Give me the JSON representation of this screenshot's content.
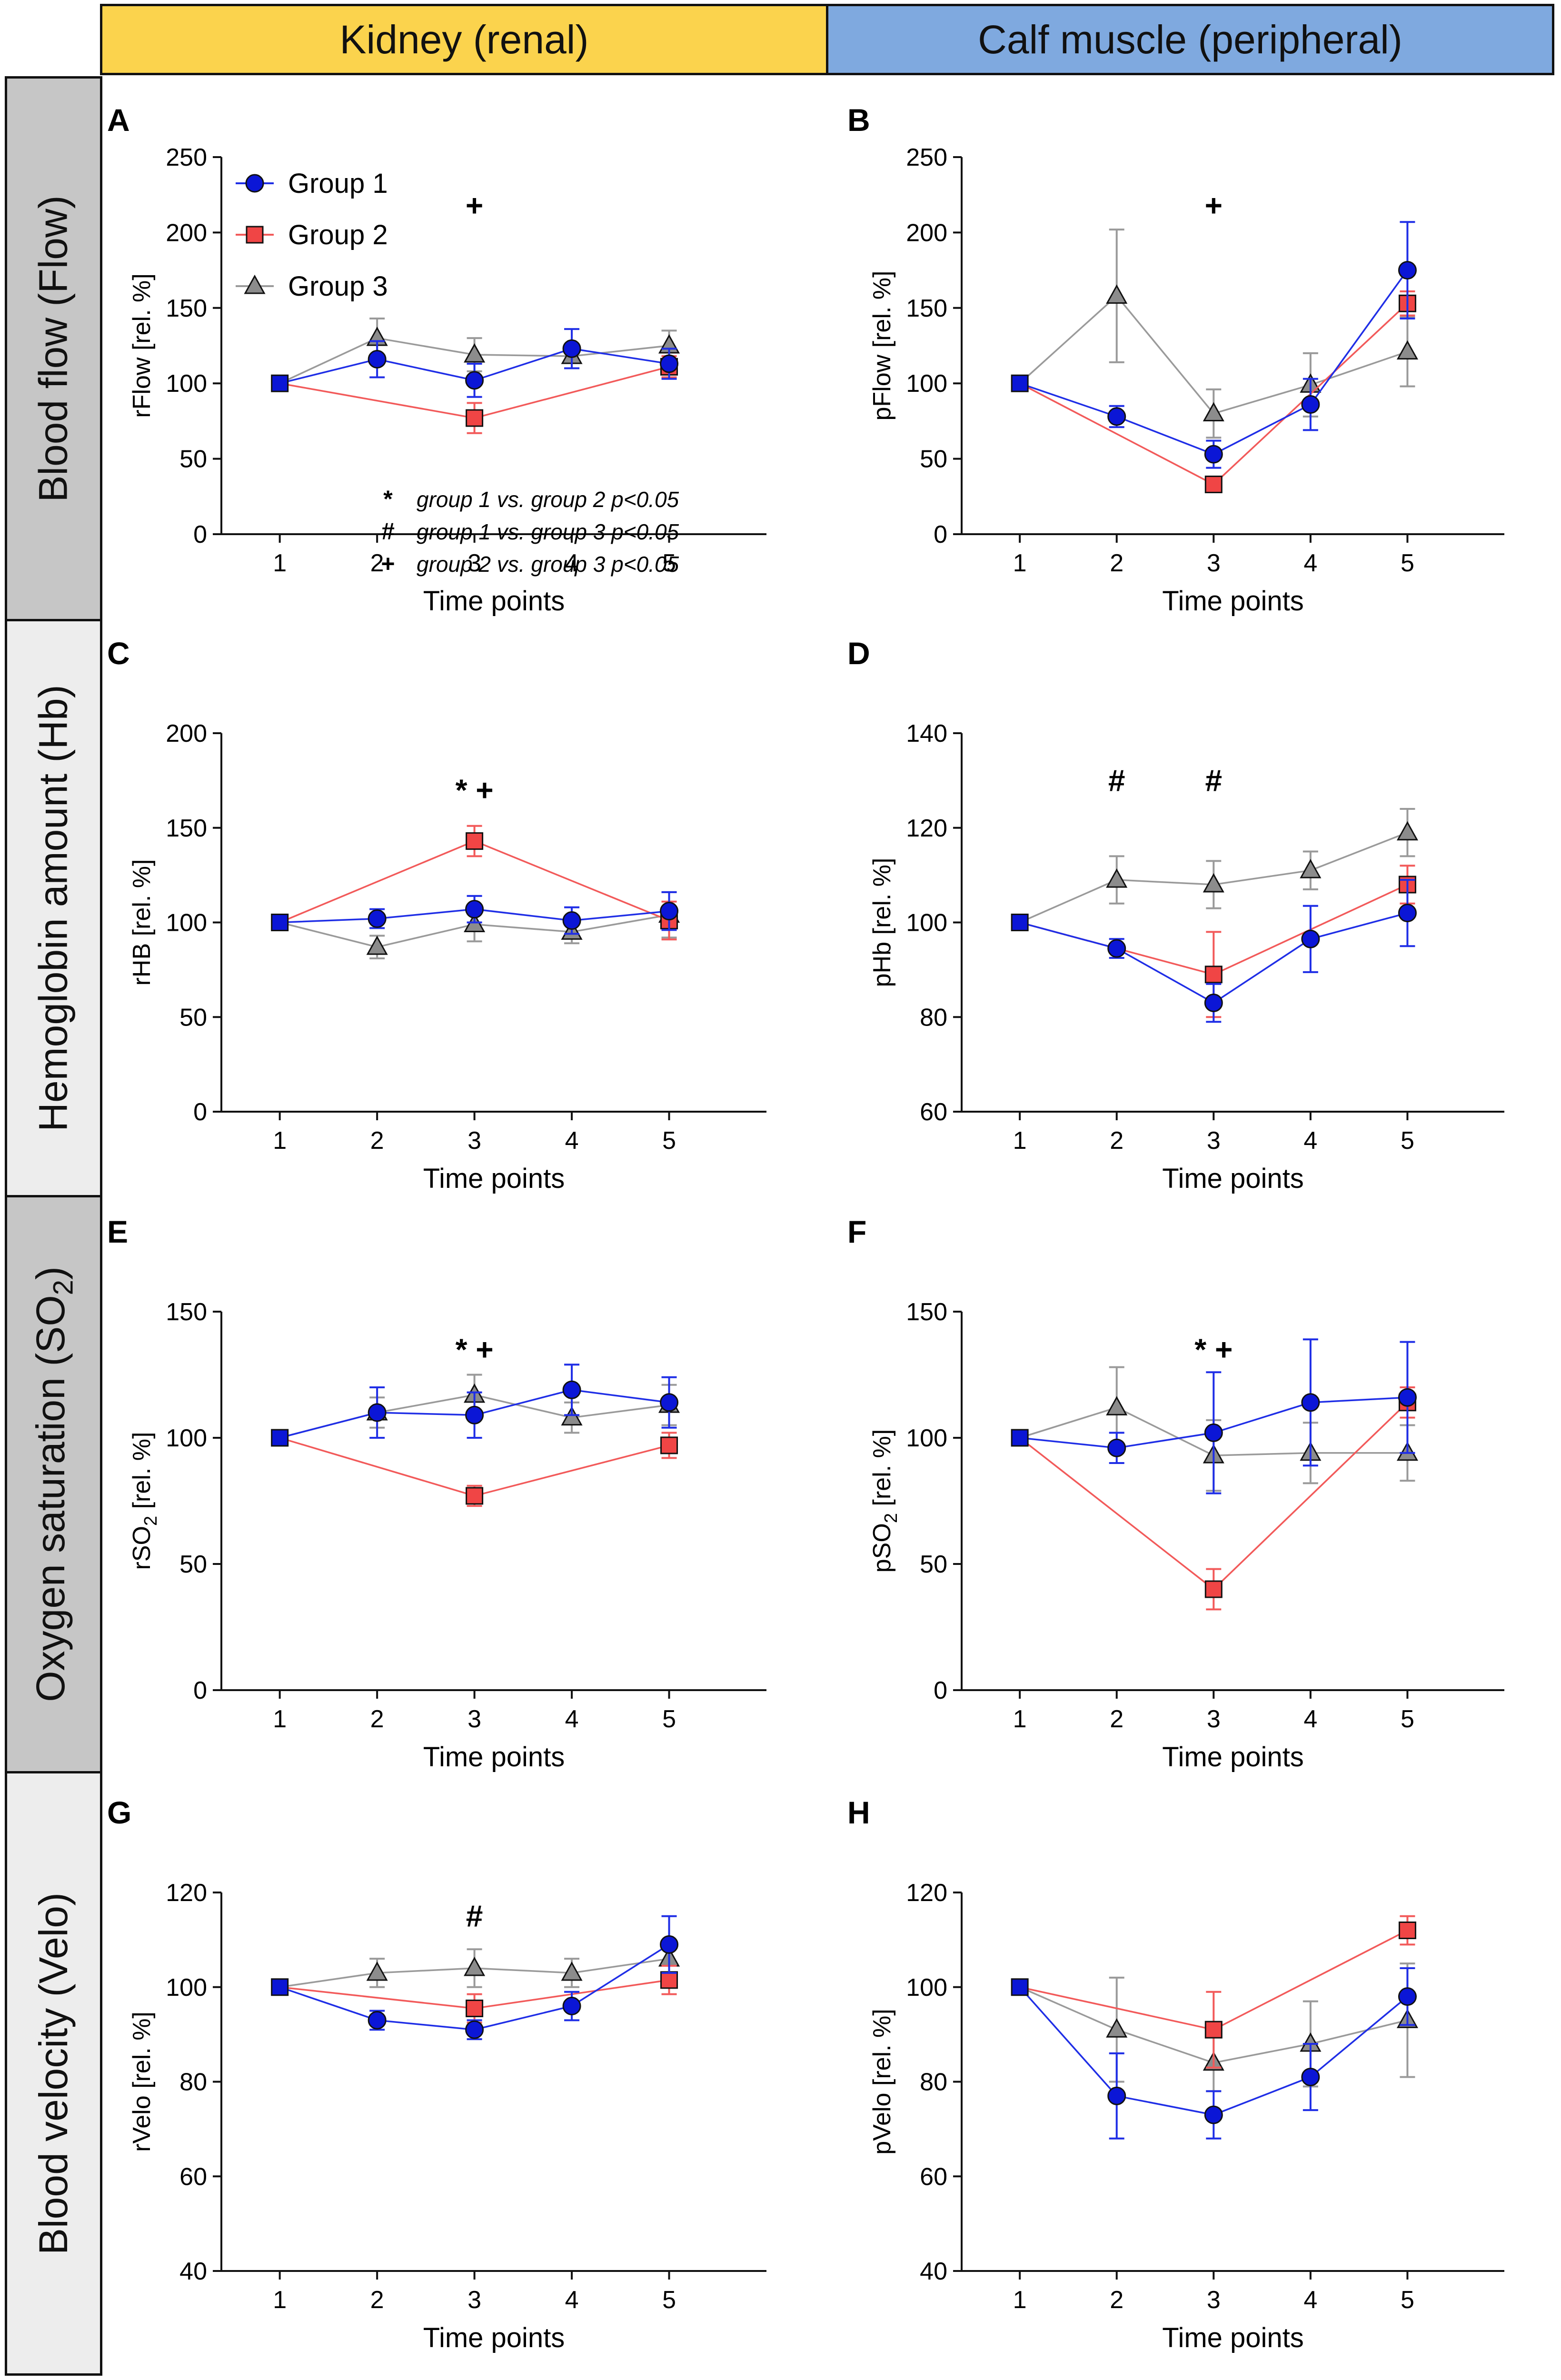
{
  "columns": [
    "Kidney (renal)",
    "Calf muscle (peripheral)"
  ],
  "rows": [
    {
      "label": "Blood flow (Flow)",
      "shade": "grey"
    },
    {
      "label": "Hemoglobin amount (Hb)",
      "shade": "light"
    },
    {
      "label": "Oxygen saturation (SO2)",
      "shade": "grey"
    },
    {
      "label": "Blood velocity (Velo)",
      "shade": "light"
    }
  ],
  "legend": [
    "Group 1",
    "Group 2",
    "Group 3"
  ],
  "stats_note": [
    {
      "symbol": "*",
      "text": "group 1 vs. group 2 p<0.05"
    },
    {
      "symbol": "#",
      "text": "group 1 vs. group 3 p<0.05"
    },
    {
      "symbol": "+",
      "text": "group 2 vs. group 3 p<0.05"
    }
  ],
  "colors": {
    "group1": "#0b16d6",
    "group2": "#f04545",
    "group3": "#8c8c8c",
    "line1": "#1f2ee6",
    "line2": "#f25a5a",
    "line3": "#9a9a9a"
  },
  "chart_data": [
    {
      "panel": "A",
      "type": "line",
      "ylabel": "rFlow [rel. %]",
      "xlabel": "Time points",
      "x": [
        1,
        2,
        3,
        4,
        5
      ],
      "ylim": [
        0,
        250
      ],
      "yticks": [
        0,
        50,
        100,
        150,
        200,
        250
      ],
      "series": [
        {
          "name": "Group 1",
          "values": [
            100,
            116,
            102,
            123,
            113
          ],
          "errors": [
            0,
            12,
            11,
            13,
            10
          ]
        },
        {
          "name": "Group 2",
          "values": [
            100,
            null,
            77,
            null,
            111
          ],
          "errors": [
            0,
            0,
            10,
            0,
            7
          ]
        },
        {
          "name": "Group 3",
          "values": [
            100,
            130,
            119,
            118,
            125
          ],
          "errors": [
            0,
            13,
            11,
            8,
            10
          ]
        }
      ],
      "annotations": [
        {
          "x": 3,
          "y": 218,
          "text": "+"
        }
      ]
    },
    {
      "panel": "B",
      "type": "line",
      "ylabel": "pFlow [rel. %]",
      "xlabel": "Time points",
      "x": [
        1,
        2,
        3,
        4,
        5
      ],
      "ylim": [
        0,
        250
      ],
      "yticks": [
        0,
        50,
        100,
        150,
        200,
        250
      ],
      "series": [
        {
          "name": "Group 1",
          "values": [
            100,
            78,
            53,
            86,
            175
          ],
          "errors": [
            0,
            7,
            9,
            17,
            32
          ]
        },
        {
          "name": "Group 2",
          "values": [
            100,
            null,
            33,
            null,
            153
          ],
          "errors": [
            0,
            0,
            3,
            0,
            8
          ]
        },
        {
          "name": "Group 3",
          "values": [
            100,
            158,
            80,
            99,
            121
          ],
          "errors": [
            0,
            44,
            16,
            21,
            23
          ]
        }
      ],
      "annotations": [
        {
          "x": 3,
          "y": 218,
          "text": "+"
        }
      ]
    },
    {
      "panel": "C",
      "type": "line",
      "ylabel": "rHB [rel. %]",
      "xlabel": "Time points",
      "x": [
        1,
        2,
        3,
        4,
        5
      ],
      "ylim": [
        0,
        200
      ],
      "yticks": [
        0,
        50,
        100,
        150,
        200
      ],
      "series": [
        {
          "name": "Group 1",
          "values": [
            100,
            102,
            107,
            101,
            106
          ],
          "errors": [
            0,
            5,
            7,
            7,
            10
          ]
        },
        {
          "name": "Group 2",
          "values": [
            100,
            null,
            143,
            null,
            101
          ],
          "errors": [
            0,
            0,
            8,
            0,
            10
          ]
        },
        {
          "name": "Group 3",
          "values": [
            100,
            87,
            99,
            95,
            104
          ],
          "errors": [
            0,
            6,
            9,
            6,
            12
          ]
        }
      ],
      "annotations": [
        {
          "x": 3,
          "y": 170,
          "text": "* +"
        }
      ]
    },
    {
      "panel": "D",
      "type": "line",
      "ylabel": "pHb [rel. %]",
      "xlabel": "Time points",
      "x": [
        1,
        2,
        3,
        4,
        5
      ],
      "ylim": [
        60,
        140
      ],
      "yticks": [
        60,
        80,
        100,
        120,
        140
      ],
      "series": [
        {
          "name": "Group 1",
          "values": [
            100,
            94.5,
            83,
            96.5,
            102
          ],
          "errors": [
            0,
            2,
            4,
            7,
            7
          ]
        },
        {
          "name": "Group 2",
          "values": [
            100,
            null,
            89,
            null,
            108
          ],
          "errors": [
            0,
            0,
            9,
            0,
            4
          ]
        },
        {
          "name": "Group 3",
          "values": [
            100,
            109,
            108,
            111,
            119
          ],
          "errors": [
            0,
            5,
            5,
            4,
            5
          ]
        }
      ],
      "annotations": [
        {
          "x": 2,
          "y": 130,
          "text": "#"
        },
        {
          "x": 3,
          "y": 130,
          "text": "#"
        }
      ]
    },
    {
      "panel": "E",
      "type": "line",
      "ylabel": "rSO2 [rel. %]",
      "xlabel": "Time points",
      "x": [
        1,
        2,
        3,
        4,
        5
      ],
      "ylim": [
        0,
        150
      ],
      "yticks": [
        0,
        50,
        100,
        150
      ],
      "series": [
        {
          "name": "Group 1",
          "values": [
            100,
            110,
            109,
            119,
            114
          ],
          "errors": [
            0,
            10,
            9,
            10,
            10
          ]
        },
        {
          "name": "Group 2",
          "values": [
            100,
            null,
            77,
            null,
            97
          ],
          "errors": [
            0,
            0,
            4,
            0,
            5
          ]
        },
        {
          "name": "Group 3",
          "values": [
            100,
            110,
            117,
            108,
            113
          ],
          "errors": [
            0,
            6,
            8,
            6,
            8
          ]
        }
      ],
      "annotations": [
        {
          "x": 3,
          "y": 135,
          "text": "* +"
        }
      ]
    },
    {
      "panel": "F",
      "type": "line",
      "ylabel": "pSO2 [rel. %]",
      "xlabel": "Time points",
      "x": [
        1,
        2,
        3,
        4,
        5
      ],
      "ylim": [
        0,
        150
      ],
      "yticks": [
        0,
        50,
        100,
        150
      ],
      "series": [
        {
          "name": "Group 1",
          "values": [
            100,
            96,
            102,
            114,
            116
          ],
          "errors": [
            0,
            6,
            24,
            25,
            22
          ]
        },
        {
          "name": "Group 2",
          "values": [
            100,
            null,
            40,
            null,
            114
          ],
          "errors": [
            0,
            0,
            8,
            0,
            6
          ]
        },
        {
          "name": "Group 3",
          "values": [
            100,
            112,
            93,
            94,
            94
          ],
          "errors": [
            0,
            16,
            14,
            12,
            11
          ]
        }
      ],
      "annotations": [
        {
          "x": 3,
          "y": 135,
          "text": "* +"
        }
      ]
    },
    {
      "panel": "G",
      "type": "line",
      "ylabel": "rVelo [rel. %]",
      "xlabel": "Time points",
      "x": [
        1,
        2,
        3,
        4,
        5
      ],
      "ylim": [
        40,
        120
      ],
      "yticks": [
        40,
        60,
        80,
        100,
        120
      ],
      "series": [
        {
          "name": "Group 1",
          "values": [
            100,
            93,
            91,
            96,
            109
          ],
          "errors": [
            0,
            2,
            2,
            3,
            6
          ]
        },
        {
          "name": "Group 2",
          "values": [
            100,
            null,
            95.5,
            null,
            101.5
          ],
          "errors": [
            0,
            0,
            3,
            0,
            3
          ]
        },
        {
          "name": "Group 3",
          "values": [
            100,
            103,
            104,
            103,
            106
          ],
          "errors": [
            0,
            3,
            4,
            3,
            3
          ]
        }
      ],
      "annotations": [
        {
          "x": 3,
          "y": 115,
          "text": "#"
        }
      ]
    },
    {
      "panel": "H",
      "type": "line",
      "ylabel": "pVelo [rel. %]",
      "xlabel": "Time points",
      "x": [
        1,
        2,
        3,
        4,
        5
      ],
      "ylim": [
        40,
        120
      ],
      "yticks": [
        40,
        60,
        80,
        100,
        120
      ],
      "series": [
        {
          "name": "Group 1",
          "values": [
            100,
            77,
            73,
            81,
            98
          ],
          "errors": [
            0,
            9,
            5,
            7,
            6
          ]
        },
        {
          "name": "Group 2",
          "values": [
            100,
            null,
            91,
            null,
            112
          ],
          "errors": [
            0,
            0,
            8,
            0,
            3
          ]
        },
        {
          "name": "Group 3",
          "values": [
            100,
            91,
            84,
            88,
            93
          ],
          "errors": [
            0,
            11,
            6,
            9,
            12
          ]
        }
      ],
      "annotations": []
    }
  ]
}
